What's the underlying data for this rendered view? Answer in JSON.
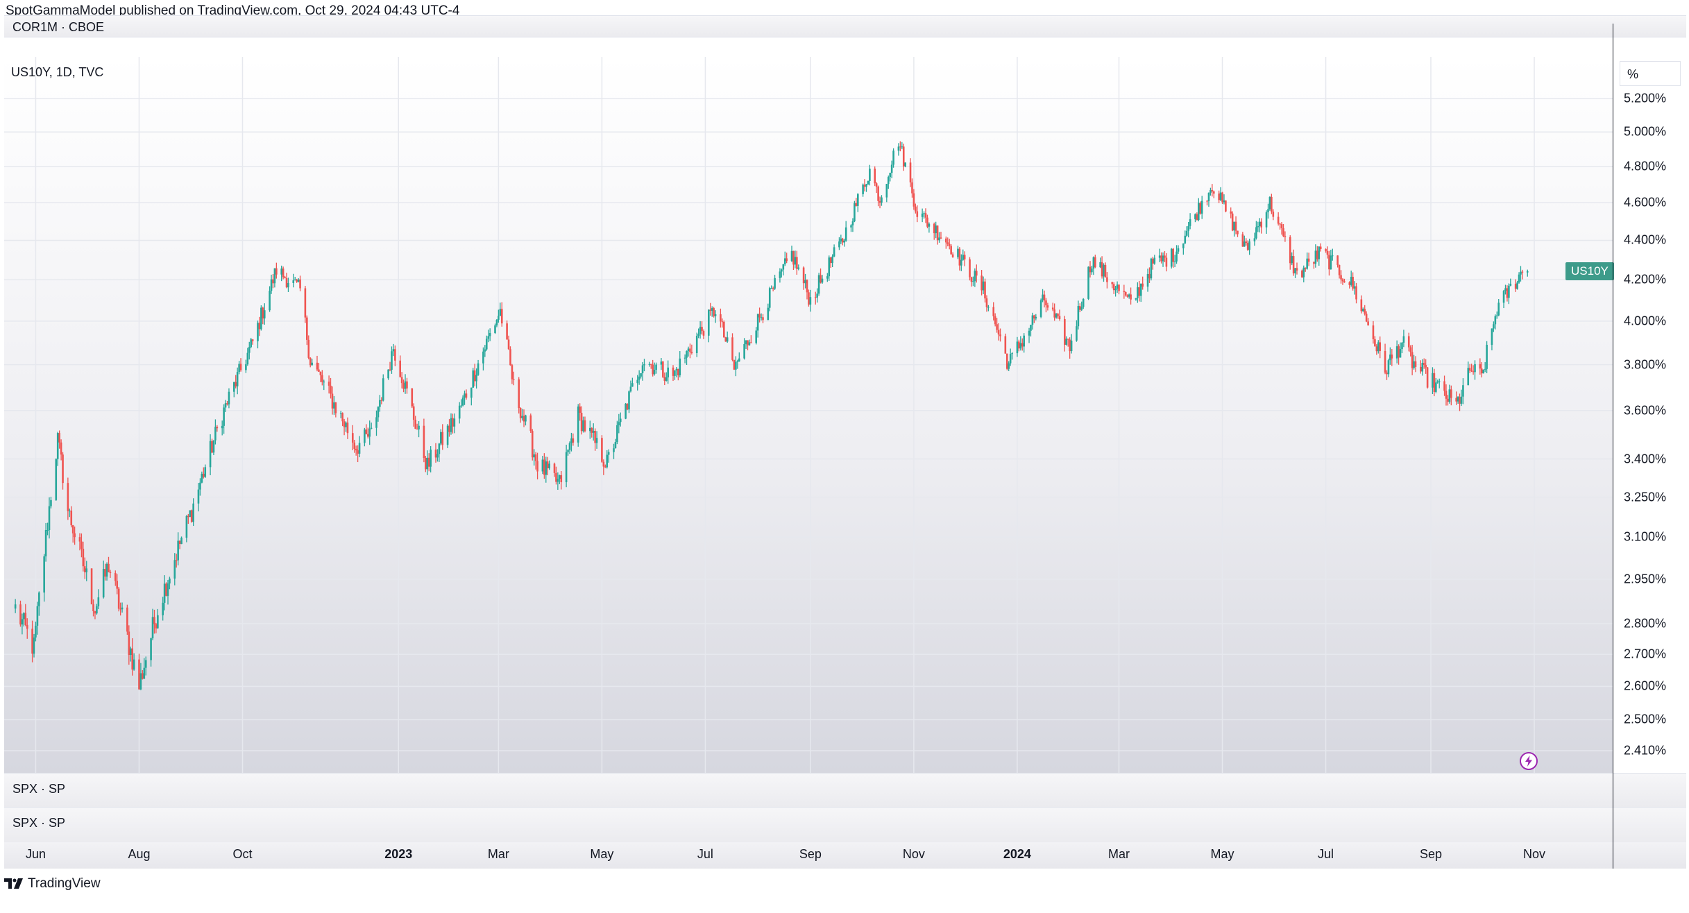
{
  "header": {
    "published_line": "SpotGammaModel published on TradingView.com, Oct 29, 2024 04:43 UTC-4"
  },
  "panes": {
    "top_label": "COR1M · CBOE",
    "main_label": "US10Y, 1D, TVC",
    "lower1_label": "SPX · SP",
    "lower2_label": "SPX · SP"
  },
  "y_axis": {
    "unit_label": "%",
    "ticks": [
      "5.200%",
      "5.000%",
      "4.800%",
      "4.600%",
      "4.400%",
      "4.200%",
      "4.000%",
      "3.800%",
      "3.600%",
      "3.400%",
      "3.250%",
      "3.100%",
      "2.950%",
      "2.800%",
      "2.700%",
      "2.600%",
      "2.500%",
      "2.410%"
    ]
  },
  "price_tag": "US10Y",
  "x_axis": {
    "ticks": [
      {
        "label": "Jun",
        "year": false
      },
      {
        "label": "Aug",
        "year": false
      },
      {
        "label": "Oct",
        "year": false
      },
      {
        "label": "2023",
        "year": true
      },
      {
        "label": "Mar",
        "year": false
      },
      {
        "label": "May",
        "year": false
      },
      {
        "label": "Jul",
        "year": false
      },
      {
        "label": "Sep",
        "year": false
      },
      {
        "label": "Nov",
        "year": false
      },
      {
        "label": "2024",
        "year": true
      },
      {
        "label": "Mar",
        "year": false
      },
      {
        "label": "May",
        "year": false
      },
      {
        "label": "Jul",
        "year": false
      },
      {
        "label": "Sep",
        "year": false
      },
      {
        "label": "Nov",
        "year": false
      }
    ]
  },
  "footer": {
    "brand": "TradingView"
  },
  "icons": {
    "footer_logo": "tradingview-logo-icon",
    "alert": "lightning-bolt-icon"
  },
  "colors": {
    "up": "#26a69a",
    "down": "#ef5350",
    "tag": "#3d9b8a",
    "bolt": "#9c27b0"
  },
  "chart_data": {
    "type": "candlestick",
    "title": "US10Y, 1D, TVC",
    "symbol": "US10Y",
    "interval": "1D",
    "scale": "log",
    "ylim": [
      2.41,
      5.25
    ],
    "y_unit": "%",
    "grid": true,
    "x": [
      "2022-06-01",
      "2022-08-01",
      "2022-10-01",
      "2023-01-01",
      "2023-03-01",
      "2023-05-01",
      "2023-07-01",
      "2023-09-01",
      "2023-11-01",
      "2024-01-01",
      "2024-03-01",
      "2024-05-01",
      "2024-07-01",
      "2024-09-01",
      "2024-11-01"
    ],
    "anchors": [
      [
        "2022-05-20",
        2.85
      ],
      [
        "2022-05-31",
        2.72
      ],
      [
        "2022-06-14",
        3.48
      ],
      [
        "2022-06-20",
        3.2
      ],
      [
        "2022-07-06",
        2.85
      ],
      [
        "2022-07-14",
        3.0
      ],
      [
        "2022-08-01",
        2.6
      ],
      [
        "2022-08-12",
        2.85
      ],
      [
        "2022-09-01",
        3.2
      ],
      [
        "2022-09-20",
        3.6
      ],
      [
        "2022-10-07",
        3.9
      ],
      [
        "2022-10-21",
        4.25
      ],
      [
        "2022-11-04",
        4.15
      ],
      [
        "2022-11-10",
        3.82
      ],
      [
        "2022-12-07",
        3.45
      ],
      [
        "2022-12-16",
        3.5
      ],
      [
        "2022-12-29",
        3.88
      ],
      [
        "2023-01-18",
        3.37
      ],
      [
        "2023-02-06",
        3.6
      ],
      [
        "2023-03-02",
        4.05
      ],
      [
        "2023-03-10",
        3.7
      ],
      [
        "2023-03-24",
        3.38
      ],
      [
        "2023-04-06",
        3.3
      ],
      [
        "2023-04-17",
        3.58
      ],
      [
        "2023-05-04",
        3.38
      ],
      [
        "2023-05-25",
        3.82
      ],
      [
        "2023-06-12",
        3.75
      ],
      [
        "2023-07-07",
        4.06
      ],
      [
        "2023-07-18",
        3.78
      ],
      [
        "2023-08-04",
        4.05
      ],
      [
        "2023-08-21",
        4.33
      ],
      [
        "2023-09-01",
        4.1
      ],
      [
        "2023-09-20",
        4.4
      ],
      [
        "2023-10-06",
        4.78
      ],
      [
        "2023-10-12",
        4.62
      ],
      [
        "2023-10-23",
        4.95
      ],
      [
        "2023-11-03",
        4.55
      ],
      [
        "2023-11-20",
        4.4
      ],
      [
        "2023-12-12",
        4.15
      ],
      [
        "2023-12-27",
        3.8
      ],
      [
        "2024-01-17",
        4.1
      ],
      [
        "2024-02-01",
        3.88
      ],
      [
        "2024-02-14",
        4.3
      ],
      [
        "2024-03-08",
        4.08
      ],
      [
        "2024-03-21",
        4.28
      ],
      [
        "2024-04-02",
        4.32
      ],
      [
        "2024-04-25",
        4.7
      ],
      [
        "2024-05-15",
        4.35
      ],
      [
        "2024-05-29",
        4.6
      ],
      [
        "2024-06-14",
        4.22
      ],
      [
        "2024-06-28",
        4.34
      ],
      [
        "2024-07-17",
        4.17
      ],
      [
        "2024-08-05",
        3.78
      ],
      [
        "2024-08-15",
        3.9
      ],
      [
        "2024-08-22",
        3.8
      ],
      [
        "2024-09-16",
        3.62
      ],
      [
        "2024-09-25",
        3.78
      ],
      [
        "2024-10-01",
        3.74
      ],
      [
        "2024-10-10",
        4.06
      ],
      [
        "2024-10-28",
        4.28
      ]
    ]
  }
}
